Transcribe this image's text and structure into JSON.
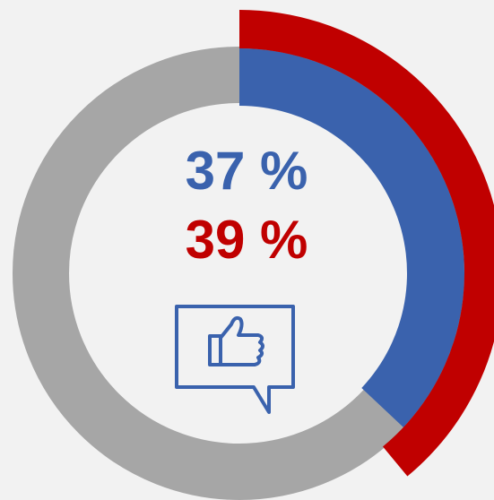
{
  "chart_data": {
    "type": "radial",
    "values": [
      37,
      39
    ],
    "value_labels": [
      "37 %",
      "39 %"
    ],
    "colors": [
      "#3a62ad",
      "#c00000"
    ],
    "track_color": "#a6a6a6",
    "ylim": [
      0,
      100
    ]
  }
}
